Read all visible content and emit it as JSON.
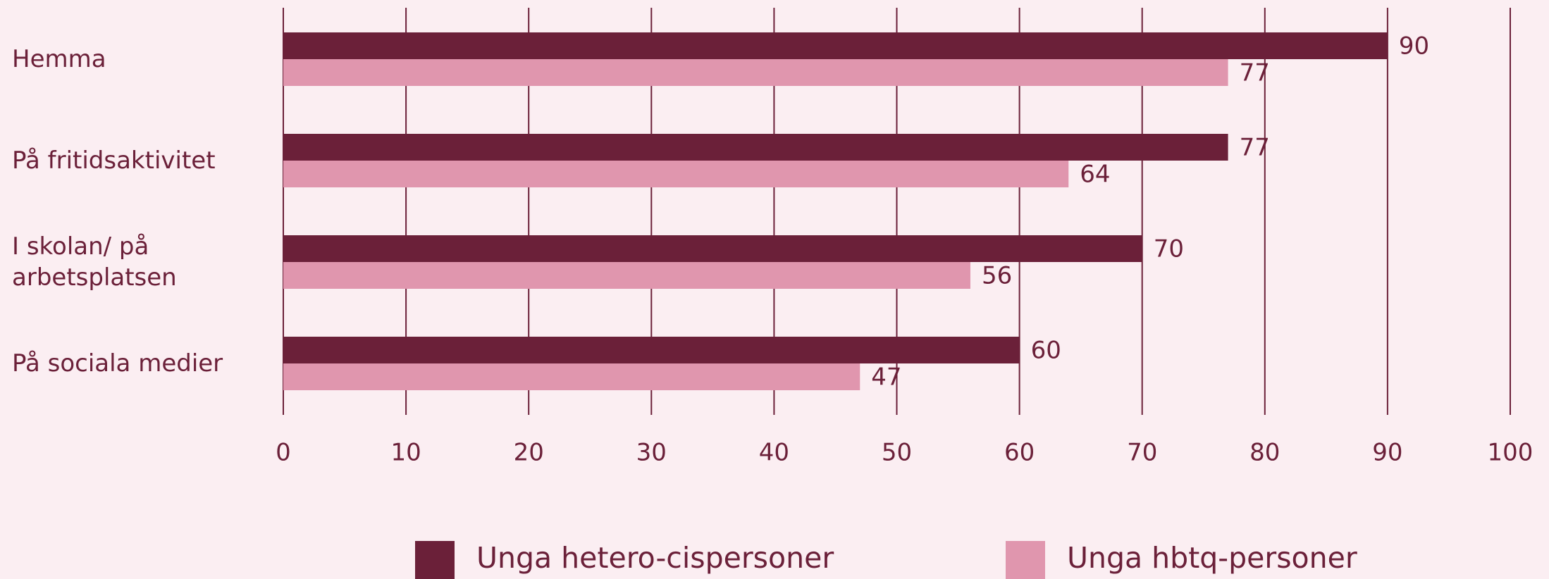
{
  "chart_data": {
    "type": "bar",
    "orientation": "horizontal",
    "categories": [
      "Hemma",
      "På fritidsaktivitet",
      "I skolan/ på arbetsplatsen",
      "På sociala medier"
    ],
    "series": [
      {
        "name": "Unga hetero-cispersoner",
        "color": "#6b2039",
        "values": [
          90,
          77,
          70,
          60
        ]
      },
      {
        "name": "Unga hbtq-personer",
        "color": "#e096ae",
        "values": [
          77,
          64,
          56,
          47
        ]
      }
    ],
    "xlim": [
      0,
      100
    ],
    "xticks": [
      0,
      10,
      20,
      30,
      40,
      50,
      60,
      70,
      80,
      90,
      100
    ],
    "grid": true,
    "legend": "bottom"
  }
}
